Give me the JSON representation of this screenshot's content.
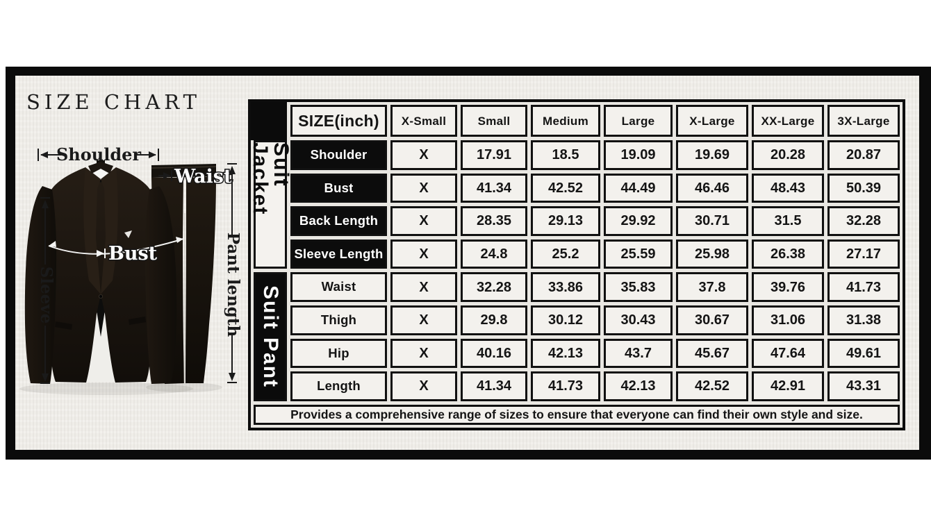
{
  "title": "SIZE CHART",
  "colors": {
    "frame": "#0b0b0b",
    "cell_dark": "#0c0c0c",
    "cell_light": "#f3f1ed",
    "background": "#f1efeb"
  },
  "illustration": {
    "labels": {
      "shoulder": "Shoulder",
      "waist": "Waist",
      "bust": "Bust",
      "sleeve": "Sleeve",
      "pant_length": "Pant length"
    }
  },
  "chart_data": {
    "type": "table",
    "title": "SIZE CHART",
    "unit_header": "SIZE(inch)",
    "columns": [
      "SIZE(inch)",
      "X-Small",
      "Small",
      "Medium",
      "Large",
      "X-Large",
      "XX-Large",
      "3X-Large"
    ],
    "sections": [
      {
        "group": "Suit Jacket",
        "rows": [
          {
            "label": "Shoulder",
            "values": [
              "X",
              "17.91",
              "18.5",
              "19.09",
              "19.69",
              "20.28",
              "20.87"
            ]
          },
          {
            "label": "Bust",
            "values": [
              "X",
              "41.34",
              "42.52",
              "44.49",
              "46.46",
              "48.43",
              "50.39"
            ]
          },
          {
            "label": "Back Length",
            "values": [
              "X",
              "28.35",
              "29.13",
              "29.92",
              "30.71",
              "31.5",
              "32.28"
            ]
          },
          {
            "label": "Sleeve Length",
            "values": [
              "X",
              "24.8",
              "25.2",
              "25.59",
              "25.98",
              "26.38",
              "27.17"
            ]
          }
        ]
      },
      {
        "group": "Suit Pant",
        "rows": [
          {
            "label": "Waist",
            "values": [
              "X",
              "32.28",
              "33.86",
              "35.83",
              "37.8",
              "39.76",
              "41.73"
            ]
          },
          {
            "label": "Thigh",
            "values": [
              "X",
              "29.8",
              "30.12",
              "30.43",
              "30.67",
              "31.06",
              "31.38"
            ]
          },
          {
            "label": "Hip",
            "values": [
              "X",
              "40.16",
              "42.13",
              "43.7",
              "45.67",
              "47.64",
              "49.61"
            ]
          },
          {
            "label": "Length",
            "values": [
              "X",
              "41.34",
              "41.73",
              "42.13",
              "42.52",
              "42.91",
              "43.31"
            ]
          }
        ]
      }
    ],
    "footnote": "Provides a comprehensive range of sizes to ensure that everyone can find their own style and size."
  }
}
